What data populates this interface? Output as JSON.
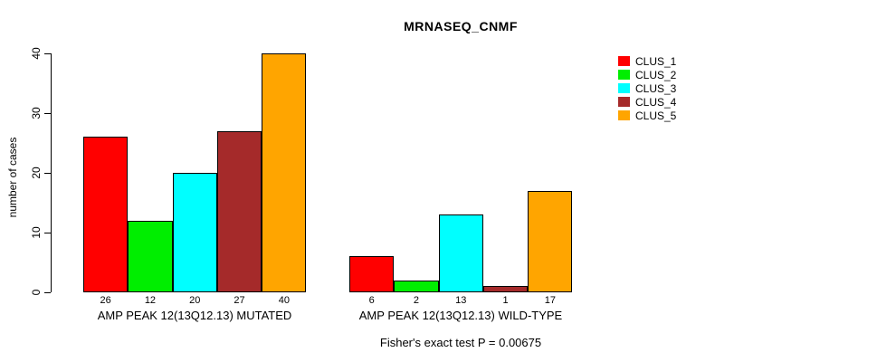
{
  "title": "MRNASEQ_CNMF",
  "footer": "Fisher's exact test P = 0.00675",
  "legend": {
    "position": "right",
    "entries": [
      {
        "label": "CLUS_1",
        "color": "#FF0000"
      },
      {
        "label": "CLUS_2",
        "color": "#00EE00"
      },
      {
        "label": "CLUS_3",
        "color": "#00FFFF"
      },
      {
        "label": "CLUS_4",
        "color": "#A52A2A"
      },
      {
        "label": "CLUS_5",
        "color": "#FFA500"
      }
    ]
  },
  "chart_data": {
    "type": "bar",
    "title": "MRNASEQ_CNMF",
    "xlabel": "",
    "ylabel": "number of cases",
    "ylim": [
      0,
      40
    ],
    "yticks": [
      0,
      10,
      20,
      30,
      40
    ],
    "grid": false,
    "legend_position": "right",
    "categories": [
      "AMP PEAK 12(13Q12.13) MUTATED",
      "AMP PEAK 12(13Q12.13) WILD-TYPE"
    ],
    "series": [
      {
        "name": "CLUS_1",
        "color": "#FF0000",
        "values": [
          26,
          6
        ]
      },
      {
        "name": "CLUS_2",
        "color": "#00EE00",
        "values": [
          12,
          2
        ]
      },
      {
        "name": "CLUS_3",
        "color": "#00FFFF",
        "values": [
          20,
          13
        ]
      },
      {
        "name": "CLUS_4",
        "color": "#A52A2A",
        "values": [
          27,
          1
        ]
      },
      {
        "name": "CLUS_5",
        "color": "#FFA500",
        "values": [
          40,
          17
        ]
      }
    ],
    "bar_value_labels": {
      "shown": true,
      "annotation": "count shown beneath each bar"
    }
  }
}
